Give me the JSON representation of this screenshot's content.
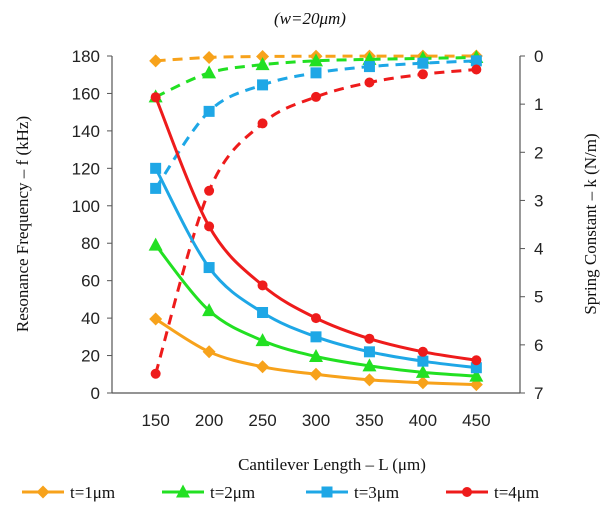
{
  "chart_data": {
    "type": "line",
    "title": "(w=20μm)",
    "xlabel": "Cantilever Length – L (μm)",
    "ylabel": "Resonance Frequency – f (kHz)",
    "y2label": "Spring Constant – k (N/m)",
    "x": [
      150,
      200,
      250,
      300,
      350,
      400,
      450
    ],
    "xticks": [
      150,
      200,
      250,
      300,
      350,
      400,
      450
    ],
    "ylim": [
      0,
      180
    ],
    "yticks": [
      0,
      20,
      40,
      60,
      80,
      100,
      120,
      140,
      160,
      180
    ],
    "y2lim": [
      0,
      7
    ],
    "y2ticks": [
      0,
      1,
      2,
      3,
      4,
      5,
      6,
      7
    ],
    "y2_inverted": true,
    "legend_position": "bottom",
    "grid": false,
    "series": [
      {
        "name": "t=1μm",
        "color": "#F7A21B",
        "marker": "diamond",
        "axis": "left",
        "style": "solid",
        "values": [
          39.5,
          22,
          14,
          10,
          7,
          5.5,
          4.5
        ]
      },
      {
        "name": "t=2μm",
        "color": "#22E022",
        "marker": "triangle",
        "axis": "left",
        "style": "solid",
        "values": [
          79,
          44,
          28,
          19.5,
          14.5,
          11,
          9
        ]
      },
      {
        "name": "t=3μm",
        "color": "#1EA7E6",
        "marker": "square",
        "axis": "left",
        "style": "solid",
        "values": [
          120,
          67,
          43,
          30,
          22,
          17,
          13.5
        ]
      },
      {
        "name": "t=4μm",
        "color": "#EE1B1B",
        "marker": "circle",
        "axis": "left",
        "style": "solid",
        "values": [
          158,
          89,
          57.5,
          40,
          29,
          22,
          17.5
        ]
      },
      {
        "name": "t=1μm",
        "color": "#F7A21B",
        "marker": "diamond",
        "axis": "right",
        "style": "dashed",
        "values": [
          0.1,
          0.03,
          0.01,
          0.005,
          0.003,
          0.002,
          0.001
        ]
      },
      {
        "name": "t=2μm",
        "color": "#22E022",
        "marker": "triangle",
        "axis": "right",
        "style": "dashed",
        "values": [
          0.85,
          0.35,
          0.18,
          0.1,
          0.07,
          0.05,
          0.03
        ]
      },
      {
        "name": "t=3μm",
        "color": "#1EA7E6",
        "marker": "square",
        "axis": "right",
        "style": "dashed",
        "values": [
          2.75,
          1.15,
          0.6,
          0.35,
          0.22,
          0.15,
          0.1
        ]
      },
      {
        "name": "t=4μm",
        "color": "#EE1B1B",
        "marker": "circle",
        "axis": "right",
        "style": "dashed",
        "values": [
          6.6,
          2.8,
          1.4,
          0.85,
          0.55,
          0.38,
          0.28
        ]
      }
    ]
  },
  "legend": [
    {
      "label": "t=1μm",
      "color": "#F7A21B",
      "marker": "diamond"
    },
    {
      "label": "t=2μm",
      "color": "#22E022",
      "marker": "triangle"
    },
    {
      "label": "t=3μm",
      "color": "#1EA7E6",
      "marker": "square"
    },
    {
      "label": "t=4μm",
      "color": "#EE1B1B",
      "marker": "circle"
    }
  ]
}
